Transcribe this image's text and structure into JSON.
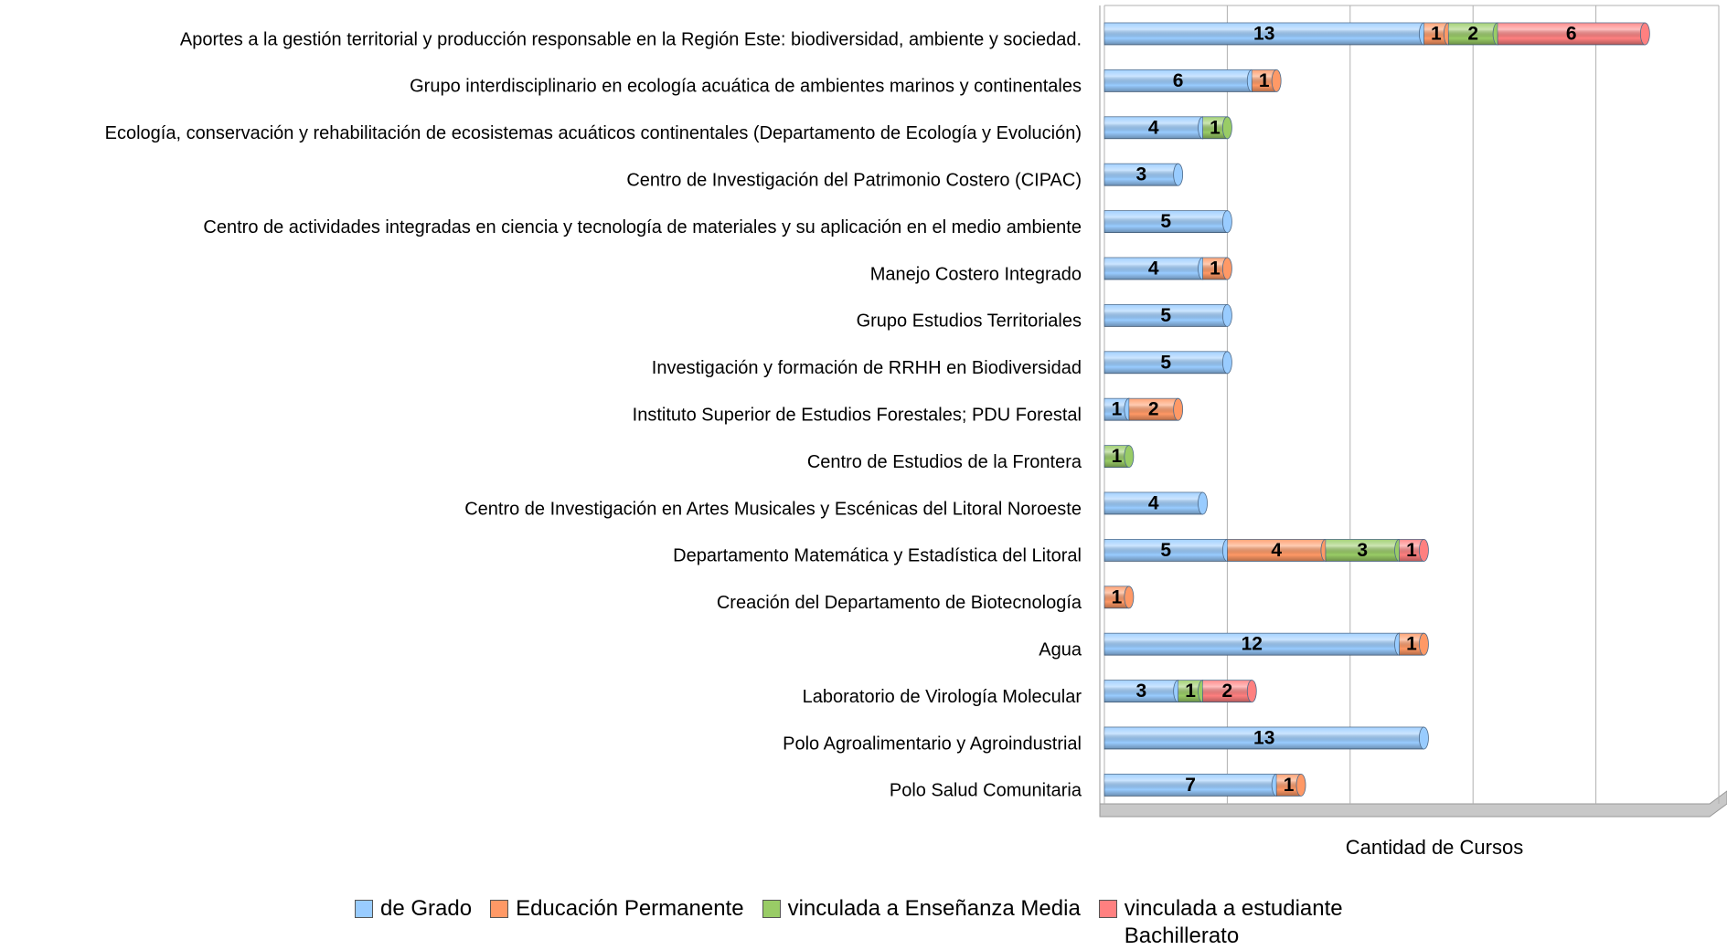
{
  "chart_data": {
    "type": "bar",
    "orientation": "horizontal",
    "stacked": true,
    "grid": true,
    "x_label": "Cantidad de Cursos",
    "xlim": [
      0,
      25
    ],
    "xticks": [
      0,
      5,
      10,
      15,
      20,
      25
    ],
    "categories": [
      "Aportes a la gestión territorial y producción responsable en la Región Este: biodiversidad, ambiente y sociedad.",
      "Grupo interdisciplinario en ecología acuática de ambientes marinos y continentales",
      "Ecología, conservación y rehabilitación de ecosistemas acuáticos continentales (Departamento de Ecología y Evolución)",
      "Centro de Investigación del Patrimonio Costero (CIPAC)",
      "Centro de actividades integradas en ciencia y tecnología de materiales y su aplicación en el medio ambiente",
      "Manejo Costero Integrado",
      "Grupo Estudios Territoriales",
      "Investigación y formación de RRHH en Biodiversidad",
      "Instituto Superior de Estudios Forestales; PDU Forestal",
      "Centro de Estudios de la Frontera",
      "Centro de Investigación en Artes Musicales y Escénicas del Litoral Noroeste",
      "Departamento Matemática y Estadística del Litoral",
      "Creación del Departamento de Biotecnología",
      "Agua",
      "Laboratorio de Virología Molecular",
      "Polo Agroalimentario y Agroindustrial",
      "Polo Salud Comunitaria"
    ],
    "series": [
      {
        "name": "de Grado",
        "color": "#99ccff",
        "values": [
          13,
          6,
          4,
          3,
          5,
          4,
          5,
          5,
          1,
          null,
          4,
          5,
          null,
          12,
          3,
          13,
          7
        ]
      },
      {
        "name": "Educación Permanente",
        "color": "#ff9966",
        "values": [
          1,
          1,
          null,
          null,
          null,
          1,
          null,
          null,
          2,
          null,
          null,
          4,
          1,
          1,
          null,
          null,
          1
        ]
      },
      {
        "name": "vinculada a Enseñanza Media",
        "color": "#99cc66",
        "values": [
          2,
          null,
          1,
          null,
          null,
          null,
          null,
          null,
          null,
          1,
          null,
          3,
          null,
          null,
          1,
          null,
          null
        ]
      },
      {
        "name": "vinculada a estudiante Bachillerato",
        "color": "#ff8080",
        "values": [
          6,
          null,
          null,
          null,
          null,
          null,
          null,
          null,
          null,
          null,
          null,
          1,
          null,
          null,
          2,
          null,
          null
        ]
      }
    ]
  }
}
